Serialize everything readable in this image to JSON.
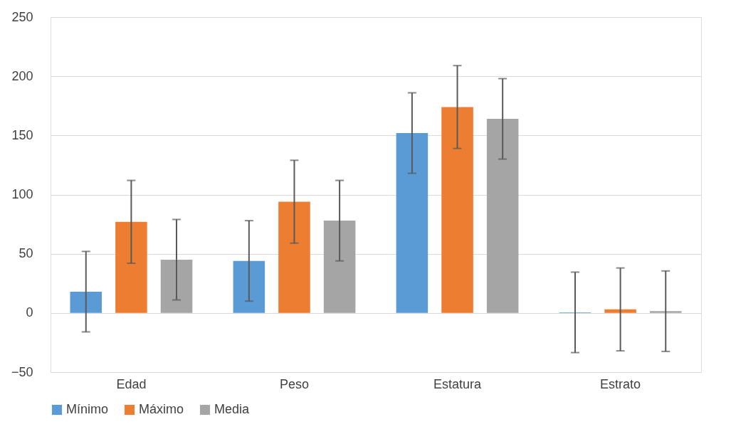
{
  "chart_data": {
    "type": "bar",
    "categories": [
      "Edad",
      "Peso",
      "Estatura",
      "Estrato"
    ],
    "series": [
      {
        "name": "Mínimo",
        "color": "#5b9bd5",
        "values": [
          18,
          44,
          152,
          0.5
        ],
        "errors": [
          34,
          34,
          34,
          34
        ]
      },
      {
        "name": "Máximo",
        "color": "#ed7d31",
        "values": [
          77,
          94,
          174,
          3
        ],
        "errors": [
          35,
          35,
          35,
          35
        ]
      },
      {
        "name": "Media",
        "color": "#a5a5a5",
        "values": [
          45,
          78,
          164,
          1.5
        ],
        "errors": [
          34,
          34,
          34,
          34
        ]
      }
    ],
    "ylim": [
      -50,
      250
    ],
    "yticks": [
      -50,
      0,
      50,
      100,
      150,
      200,
      250
    ],
    "grid": "y",
    "legend": "bottom"
  }
}
